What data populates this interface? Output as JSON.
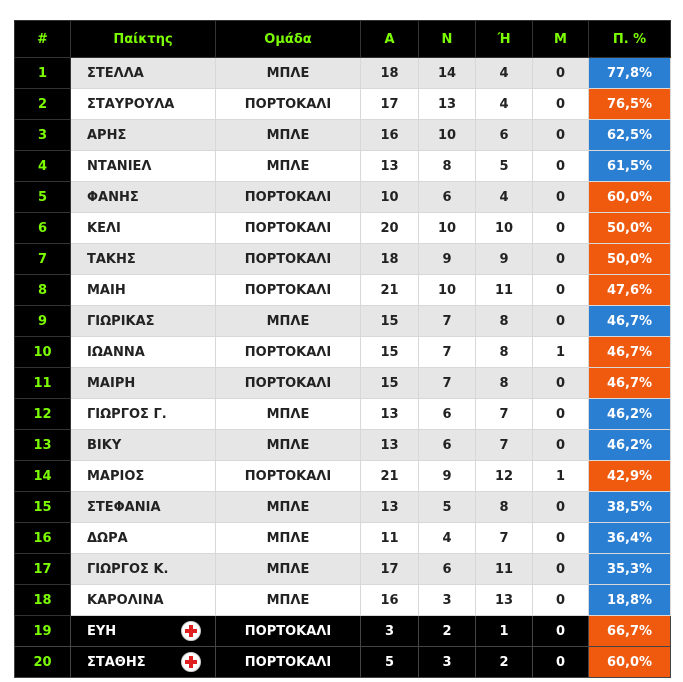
{
  "table": {
    "columns": [
      "#",
      "Παίκτης",
      "Ομάδα",
      "Α",
      "Ν",
      "Ή",
      "Μ",
      "Π. %"
    ],
    "rows": [
      {
        "rank": 1,
        "name": "ΣΤΕΛΛΑ",
        "team": "ΜΠΛΕ",
        "a": 18,
        "n": 14,
        "h": 4,
        "m": 0,
        "pct": "77,8%",
        "color": "#2b7fd3"
      },
      {
        "rank": 2,
        "name": "ΣΤΑΥΡΟΥΛΑ",
        "team": "ΠΟΡΤΟΚΑΛΙ",
        "a": 17,
        "n": 13,
        "h": 4,
        "m": 0,
        "pct": "76,5%",
        "color": "#f05a0e"
      },
      {
        "rank": 3,
        "name": "ΑΡΗΣ",
        "team": "ΜΠΛΕ",
        "a": 16,
        "n": 10,
        "h": 6,
        "m": 0,
        "pct": "62,5%",
        "color": "#2b7fd3"
      },
      {
        "rank": 4,
        "name": "ΝΤΑΝΙΕΛ",
        "team": "ΜΠΛΕ",
        "a": 13,
        "n": 8,
        "h": 5,
        "m": 0,
        "pct": "61,5%",
        "color": "#2b7fd3"
      },
      {
        "rank": 5,
        "name": "ΦΑΝΗΣ",
        "team": "ΠΟΡΤΟΚΑΛΙ",
        "a": 10,
        "n": 6,
        "h": 4,
        "m": 0,
        "pct": "60,0%",
        "color": "#f05a0e"
      },
      {
        "rank": 6,
        "name": "ΚΕΛΙ",
        "team": "ΠΟΡΤΟΚΑΛΙ",
        "a": 20,
        "n": 10,
        "h": 10,
        "m": 0,
        "pct": "50,0%",
        "color": "#f05a0e"
      },
      {
        "rank": 7,
        "name": "ΤΑΚΗΣ",
        "team": "ΠΟΡΤΟΚΑΛΙ",
        "a": 18,
        "n": 9,
        "h": 9,
        "m": 0,
        "pct": "50,0%",
        "color": "#f05a0e"
      },
      {
        "rank": 8,
        "name": "ΜΑΙΗ",
        "team": "ΠΟΡΤΟΚΑΛΙ",
        "a": 21,
        "n": 10,
        "h": 11,
        "m": 0,
        "pct": "47,6%",
        "color": "#f05a0e"
      },
      {
        "rank": 9,
        "name": "ΓΙΩΡΙΚΑΣ",
        "team": "ΜΠΛΕ",
        "a": 15,
        "n": 7,
        "h": 8,
        "m": 0,
        "pct": "46,7%",
        "color": "#2b7fd3"
      },
      {
        "rank": 10,
        "name": "ΙΩΑΝΝΑ",
        "team": "ΠΟΡΤΟΚΑΛΙ",
        "a": 15,
        "n": 7,
        "h": 8,
        "m": 1,
        "pct": "46,7%",
        "color": "#f05a0e"
      },
      {
        "rank": 11,
        "name": "ΜΑΙΡΗ",
        "team": "ΠΟΡΤΟΚΑΛΙ",
        "a": 15,
        "n": 7,
        "h": 8,
        "m": 0,
        "pct": "46,7%",
        "color": "#f05a0e"
      },
      {
        "rank": 12,
        "name": "ΓΙΩΡΓΟΣ Γ.",
        "team": "ΜΠΛΕ",
        "a": 13,
        "n": 6,
        "h": 7,
        "m": 0,
        "pct": "46,2%",
        "color": "#2b7fd3"
      },
      {
        "rank": 13,
        "name": "ΒΙΚΥ",
        "team": "ΜΠΛΕ",
        "a": 13,
        "n": 6,
        "h": 7,
        "m": 0,
        "pct": "46,2%",
        "color": "#2b7fd3"
      },
      {
        "rank": 14,
        "name": "ΜΑΡΙΟΣ",
        "team": "ΠΟΡΤΟΚΑΛΙ",
        "a": 21,
        "n": 9,
        "h": 12,
        "m": 1,
        "pct": "42,9%",
        "color": "#f05a0e"
      },
      {
        "rank": 15,
        "name": "ΣΤΕΦΑΝΙΑ",
        "team": "ΜΠΛΕ",
        "a": 13,
        "n": 5,
        "h": 8,
        "m": 0,
        "pct": "38,5%",
        "color": "#2b7fd3"
      },
      {
        "rank": 16,
        "name": "ΔΩΡΑ",
        "team": "ΜΠΛΕ",
        "a": 11,
        "n": 4,
        "h": 7,
        "m": 0,
        "pct": "36,4%",
        "color": "#2b7fd3"
      },
      {
        "rank": 17,
        "name": "ΓΙΩΡΓΟΣ Κ.",
        "team": "ΜΠΛΕ",
        "a": 17,
        "n": 6,
        "h": 11,
        "m": 0,
        "pct": "35,3%",
        "color": "#2b7fd3"
      },
      {
        "rank": 18,
        "name": "ΚΑΡΟΛΙΝΑ",
        "team": "ΜΠΛΕ",
        "a": 16,
        "n": 3,
        "h": 13,
        "m": 0,
        "pct": "18,8%",
        "color": "#2b7fd3"
      },
      {
        "rank": 19,
        "name": "ΕΥΗ",
        "team": "ΠΟΡΤΟΚΑΛΙ",
        "a": 3,
        "n": 2,
        "h": 1,
        "m": 0,
        "pct": "66,7%",
        "color": "#f05a0e",
        "injured": true
      },
      {
        "rank": 20,
        "name": "ΣΤΑΘΗΣ",
        "team": "ΠΟΡΤΟΚΑΛΙ",
        "a": 5,
        "n": 3,
        "h": 2,
        "m": 0,
        "pct": "60,0%",
        "color": "#f05a0e",
        "injured": true
      }
    ]
  }
}
